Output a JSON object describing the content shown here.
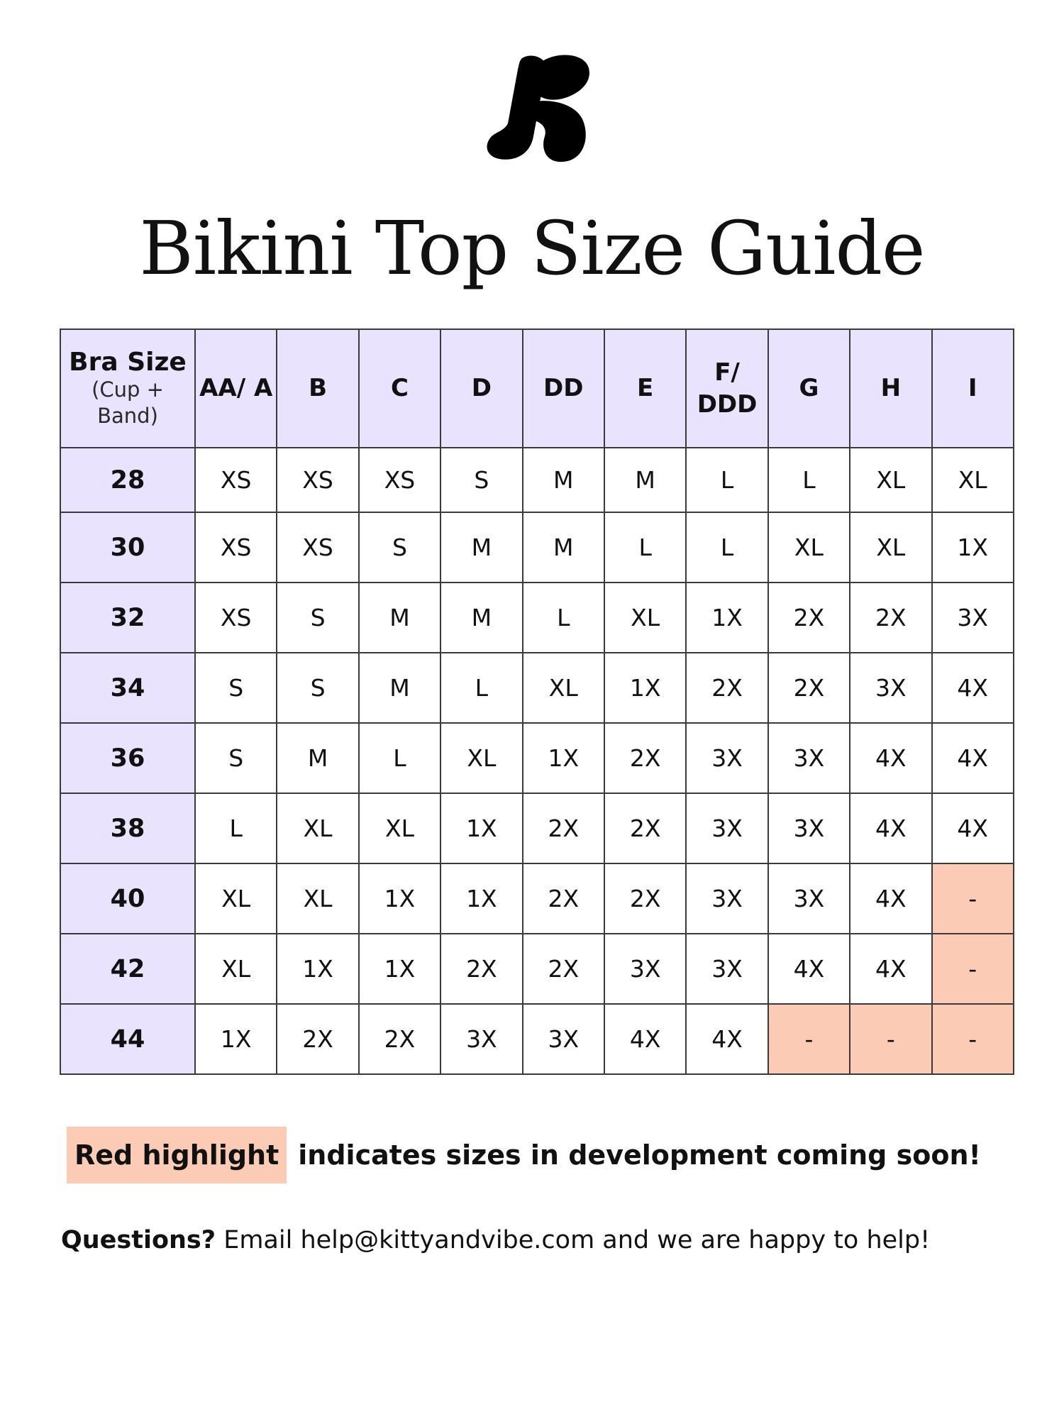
{
  "header": {
    "logo_icon": "kitty-and-vibe-k-logo-icon",
    "title": "Bikini Top Size Guide"
  },
  "table": {
    "band_header_title": "Bra Size",
    "band_header_subtitle": "(Cup + Band)",
    "cups": [
      "AA/ A",
      "B",
      "C",
      "D",
      "DD",
      "E",
      "F/ DDD",
      "G",
      "H",
      "I"
    ],
    "rows": [
      {
        "band": "28",
        "sizes": [
          "XS",
          "XS",
          "XS",
          "S",
          "M",
          "M",
          "L",
          "L",
          "XL",
          "XL"
        ]
      },
      {
        "band": "30",
        "sizes": [
          "XS",
          "XS",
          "S",
          "M",
          "M",
          "L",
          "L",
          "XL",
          "XL",
          "1X"
        ]
      },
      {
        "band": "32",
        "sizes": [
          "XS",
          "S",
          "M",
          "M",
          "L",
          "XL",
          "1X",
          "2X",
          "2X",
          "3X"
        ]
      },
      {
        "band": "34",
        "sizes": [
          "S",
          "S",
          "M",
          "L",
          "XL",
          "1X",
          "2X",
          "2X",
          "3X",
          "4X"
        ]
      },
      {
        "band": "36",
        "sizes": [
          "S",
          "M",
          "L",
          "XL",
          "1X",
          "2X",
          "3X",
          "3X",
          "4X",
          "4X"
        ]
      },
      {
        "band": "38",
        "sizes": [
          "L",
          "XL",
          "XL",
          "1X",
          "2X",
          "2X",
          "3X",
          "3X",
          "4X",
          "4X"
        ]
      },
      {
        "band": "40",
        "sizes": [
          "XL",
          "XL",
          "1X",
          "1X",
          "2X",
          "2X",
          "3X",
          "3X",
          "4X",
          "-"
        ]
      },
      {
        "band": "42",
        "sizes": [
          "XL",
          "1X",
          "1X",
          "2X",
          "2X",
          "3X",
          "3X",
          "4X",
          "4X",
          "-"
        ]
      },
      {
        "band": "44",
        "sizes": [
          "1X",
          "2X",
          "2X",
          "3X",
          "3X",
          "4X",
          "4X",
          "-",
          "-",
          "-"
        ]
      }
    ],
    "colors": {
      "header_fill": "#e9e3fe",
      "coming_soon_fill": "#fccbb6",
      "border": "#3a3a3a"
    }
  },
  "legend": {
    "highlight_label": "Red highlight",
    "text": "indicates sizes in development coming soon!"
  },
  "contact": {
    "lead": "Questions?",
    "text": "Email help@kittyandvibe.com and we are happy to help!"
  }
}
